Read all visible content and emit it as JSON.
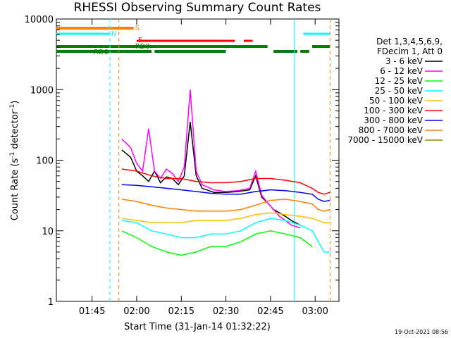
{
  "chart_data": {
    "type": "line",
    "title": "RHESSI Observing Summary Count Rates",
    "xlabel": "Start Time (31-Jan-14 01:32:22)",
    "ylabel_main": "Count Rate (s",
    "ylabel_sup1": "-1",
    "ylabel_mid": " detector",
    "ylabel_sup2": "-1",
    "ylabel_end": ")",
    "y_scale": "log",
    "ylim": [
      1,
      10000
    ],
    "xlim": [
      "01:33",
      "03:08"
    ],
    "x_ticks": [
      "01:45",
      "02:00",
      "02:15",
      "02:30",
      "02:45",
      "03:00"
    ],
    "y_ticks": [
      "1",
      "10",
      "100",
      "1000",
      "10000"
    ],
    "legend_header": [
      "Det 1,3,4,5,6,9,",
      "FDecim 1, Att 0"
    ],
    "legend_placement": "right",
    "footer_date": "19-Oct-2021 08:56",
    "series": [
      {
        "name": "3 - 6 keV",
        "color": "#000000",
        "x": [
          "01:55",
          "01:58",
          "02:00",
          "02:02",
          "02:04",
          "02:06",
          "02:08",
          "02:10",
          "02:12",
          "02:14",
          "02:16",
          "02:18",
          "02:20",
          "02:22",
          "02:26",
          "02:30",
          "02:34",
          "02:38",
          "02:40",
          "02:42",
          "02:44",
          "02:46",
          "02:48",
          "02:50",
          "02:52",
          "02:55"
        ],
        "y": [
          140,
          110,
          70,
          60,
          50,
          70,
          48,
          58,
          55,
          45,
          60,
          350,
          60,
          40,
          35,
          35,
          36,
          38,
          60,
          30,
          25,
          20,
          18,
          16,
          14,
          12
        ]
      },
      {
        "name": "6 - 12 keV",
        "color": "#ff00ff",
        "x": [
          "01:55",
          "01:58",
          "02:00",
          "02:02",
          "02:04",
          "02:06",
          "02:08",
          "02:10",
          "02:12",
          "02:14",
          "02:16",
          "02:18",
          "02:20",
          "02:22",
          "02:26",
          "02:30",
          "02:34",
          "02:38",
          "02:40",
          "02:42",
          "02:44",
          "02:46",
          "02:48",
          "02:50",
          "02:52",
          "02:55"
        ],
        "y": [
          200,
          150,
          90,
          70,
          280,
          70,
          55,
          75,
          65,
          50,
          80,
          1000,
          70,
          45,
          38,
          36,
          37,
          40,
          70,
          32,
          25,
          20,
          16,
          14,
          12,
          11
        ]
      },
      {
        "name": "12 - 25 keV",
        "color": "#00ff00",
        "x": [
          "01:55",
          "02:00",
          "02:05",
          "02:10",
          "02:15",
          "02:20",
          "02:25",
          "02:30",
          "02:35",
          "02:40",
          "02:45",
          "02:50",
          "02:55",
          "02:59"
        ],
        "y": [
          10,
          8,
          6,
          5,
          4.5,
          5,
          6,
          6,
          7,
          9,
          10,
          9,
          8,
          6
        ]
      },
      {
        "name": "25 - 50 keV",
        "color": "#00ffff",
        "x": [
          "01:55",
          "02:00",
          "02:05",
          "02:10",
          "02:15",
          "02:20",
          "02:25",
          "02:30",
          "02:35",
          "02:40",
          "02:45",
          "02:50",
          "02:55",
          "02:59",
          "03:03",
          "03:05"
        ],
        "y": [
          14,
          13,
          10,
          9,
          8,
          8,
          9,
          9,
          10,
          13,
          15,
          14,
          12,
          10,
          5,
          5
        ]
      },
      {
        "name": "50 - 100 keV",
        "color": "#ffbf00",
        "x": [
          "01:55",
          "02:00",
          "02:05",
          "02:10",
          "02:15",
          "02:20",
          "02:25",
          "02:30",
          "02:35",
          "02:40",
          "02:45",
          "02:50",
          "02:55",
          "02:59",
          "03:03",
          "03:05"
        ],
        "y": [
          15,
          14,
          13,
          13,
          13,
          14,
          14,
          14,
          15,
          17,
          18,
          17,
          16,
          15,
          13,
          13
        ]
      },
      {
        "name": "100 - 300 keV",
        "color": "#ff0000",
        "x": [
          "01:55",
          "02:00",
          "02:05",
          "02:10",
          "02:15",
          "02:20",
          "02:25",
          "02:30",
          "02:35",
          "02:40",
          "02:45",
          "02:50",
          "02:55",
          "02:59",
          "03:01",
          "03:03",
          "03:05"
        ],
        "y": [
          75,
          70,
          60,
          55,
          55,
          50,
          48,
          48,
          50,
          55,
          55,
          52,
          48,
          40,
          35,
          33,
          35
        ]
      },
      {
        "name": "300 - 800 keV",
        "color": "#0000ff",
        "x": [
          "01:55",
          "02:00",
          "02:05",
          "02:10",
          "02:15",
          "02:20",
          "02:25",
          "02:30",
          "02:35",
          "02:40",
          "02:45",
          "02:50",
          "02:55",
          "02:59",
          "03:01",
          "03:03",
          "03:05"
        ],
        "y": [
          45,
          44,
          42,
          40,
          38,
          36,
          34,
          33,
          33,
          36,
          38,
          37,
          35,
          33,
          28,
          26,
          27
        ]
      },
      {
        "name": "800 - 7000 keV",
        "color": "#ff7f00",
        "x": [
          "01:55",
          "02:00",
          "02:05",
          "02:10",
          "02:15",
          "02:20",
          "02:25",
          "02:30",
          "02:35",
          "02:40",
          "02:45",
          "02:50",
          "02:55",
          "02:59",
          "03:01",
          "03:03",
          "03:05"
        ],
        "y": [
          28,
          26,
          23,
          21,
          20,
          19,
          19,
          19,
          20,
          23,
          27,
          28,
          26,
          24,
          20,
          19,
          20
        ]
      },
      {
        "name": "7000 - 15000 keV",
        "color": "#8b8b00",
        "x": [],
        "y": []
      }
    ],
    "flags": [
      {
        "label": "S",
        "color": "#ff7f00"
      },
      {
        "label": "N",
        "color": "#00ffff"
      },
      {
        "label": "F",
        "color": "#ff0000"
      },
      {
        "label": "RD0",
        "color": "#007f00"
      },
      {
        "label": "RD6",
        "color": "#007f00"
      }
    ]
  }
}
